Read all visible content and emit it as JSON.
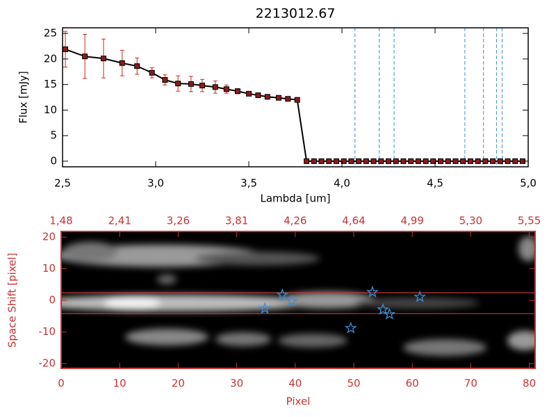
{
  "chart_data": [
    {
      "type": "line",
      "title": "2213012.67",
      "xlabel": "Lambda [um]",
      "ylabel": "Flux [mJy]",
      "xlim": [
        2.5,
        5.0
      ],
      "ylim": [
        -1.1,
        26.1
      ],
      "xticks": [
        {
          "value": 2.5,
          "label": "2,5"
        },
        {
          "value": 3.0,
          "label": "3,0"
        },
        {
          "value": 3.5,
          "label": "3,5"
        },
        {
          "value": 4.0,
          "label": "4,0"
        },
        {
          "value": 4.5,
          "label": "4,5"
        },
        {
          "value": 5.0,
          "label": "5,0"
        }
      ],
      "yticks": [
        0,
        5,
        10,
        15,
        20,
        25
      ],
      "x": [
        2.515,
        2.62,
        2.72,
        2.82,
        2.9,
        2.98,
        3.05,
        3.12,
        3.19,
        3.25,
        3.32,
        3.38,
        3.44,
        3.5,
        3.55,
        3.6,
        3.66,
        3.71,
        3.76,
        3.81,
        3.85,
        3.89,
        3.93,
        3.97,
        4.01,
        4.05,
        4.09,
        4.13,
        4.17,
        4.21,
        4.25,
        4.29,
        4.33,
        4.37,
        4.41,
        4.45,
        4.49,
        4.53,
        4.57,
        4.61,
        4.65,
        4.69,
        4.73,
        4.77,
        4.81,
        4.85,
        4.89,
        4.93,
        4.97
      ],
      "values": [
        21.9,
        20.5,
        20.1,
        19.2,
        18.6,
        17.3,
        15.9,
        15.2,
        15.1,
        14.8,
        14.5,
        14.1,
        13.7,
        13.2,
        12.9,
        12.6,
        12.4,
        12.2,
        12.0,
        0,
        0,
        0,
        0,
        0,
        0,
        0,
        0,
        0,
        0,
        0,
        0,
        0,
        0,
        0,
        0,
        0,
        0,
        0,
        0,
        0,
        0,
        0,
        0,
        0,
        0,
        0,
        0,
        0,
        0
      ],
      "errors": [
        3.5,
        4.3,
        3.8,
        2.5,
        1.6,
        1.0,
        1.0,
        1.5,
        1.5,
        1.2,
        1.2,
        0.8,
        0.5,
        0.3,
        0.3,
        0.3,
        0.3,
        0.3,
        0.3,
        0,
        0,
        0,
        0,
        0,
        0,
        0,
        0,
        0,
        0,
        0,
        0,
        0,
        0,
        0,
        0,
        0,
        0,
        0,
        0,
        0,
        0,
        0,
        0,
        0,
        0,
        0,
        0,
        0,
        0
      ],
      "color": "#000000",
      "marker_color": "#8b1a1a",
      "error_color": "#d42020",
      "vlines": [
        4.07,
        4.2,
        4.28,
        4.66,
        4.76,
        4.83,
        4.86
      ],
      "vline_color": "#3a8fd8",
      "hlines": [
        0
      ],
      "hline_color": "#d42020"
    },
    {
      "type": "image",
      "xlabel": "Pixel",
      "ylabel": "Space Shift [pixel]",
      "xlim": [
        0,
        81
      ],
      "ylim": [
        -21.5,
        21.8
      ],
      "xticks": [
        0,
        10,
        20,
        30,
        40,
        50,
        60,
        70,
        80
      ],
      "x2ticks": [
        {
          "value": 0,
          "label": "1,48"
        },
        {
          "value": 10,
          "label": "2,41"
        },
        {
          "value": 20,
          "label": "3,26"
        },
        {
          "value": 30,
          "label": "3,81"
        },
        {
          "value": 40,
          "label": "4,26"
        },
        {
          "value": 50,
          "label": "4,64"
        },
        {
          "value": 60,
          "label": "4,99"
        },
        {
          "value": 70,
          "label": "5,30"
        },
        {
          "value": 80,
          "label": "5,55"
        }
      ],
      "yticks": [
        -20,
        -10,
        0,
        10,
        20
      ],
      "axis_color": "#c83232",
      "hlines": [
        2.4,
        -4.2
      ],
      "hline_color": "#c83232",
      "stars": {
        "x": [
          34.8,
          37.8,
          39.4,
          49.5,
          53.2,
          55.0,
          56.1,
          61.3
        ],
        "y": [
          -2.6,
          1.8,
          -0.2,
          -8.8,
          2.6,
          -2.9,
          -4.4,
          1.1
        ],
        "color": "#3a8fd8"
      }
    }
  ]
}
